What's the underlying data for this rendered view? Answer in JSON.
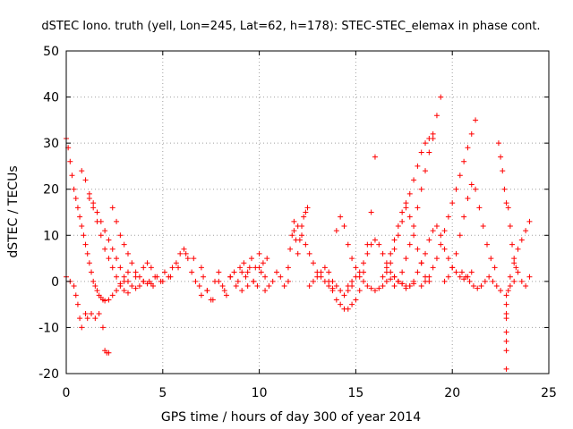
{
  "chart_data": {
    "type": "scatter",
    "title": "dSTEC Iono. truth (yell, Lon=245, Lat=62, h=178): STEC-STEC_elemax in phase cont.",
    "xlabel": "GPS time / hours of day 300 of year 2014",
    "ylabel": "dSTEC  / TECUs",
    "xlim": [
      0,
      25
    ],
    "ylim": [
      -20,
      50
    ],
    "x_ticks": [
      "0",
      "5",
      "10",
      "15",
      "20",
      "25"
    ],
    "y_ticks": [
      "-20",
      "-10",
      "0",
      "10",
      "20",
      "30",
      "40",
      "50"
    ],
    "grid": true,
    "marker": "plus",
    "color": "#ff0000",
    "series": [
      {
        "x": [
          0.0,
          0.1,
          0.2,
          0.3,
          0.4,
          0.5,
          0.6,
          0.7,
          0.8,
          0.9,
          1.0,
          1.1,
          1.2,
          1.3,
          1.4,
          1.5,
          1.6,
          1.7,
          1.8,
          1.9,
          2.0,
          2.2,
          2.4,
          2.6,
          2.8,
          3.0
        ],
        "y": [
          31,
          29,
          26,
          23,
          20,
          18,
          16,
          14,
          12,
          10,
          8,
          6,
          4,
          2,
          0,
          -1,
          -2,
          -3,
          -3.5,
          -4,
          -4.2,
          -4,
          -3,
          -2,
          -1,
          0
        ]
      },
      {
        "x": [
          0.0,
          0.2,
          0.4,
          0.5,
          0.6,
          0.7,
          0.8,
          1.0,
          1.1,
          1.3,
          1.5,
          1.7,
          1.9,
          2.0,
          2.1,
          2.2
        ],
        "y": [
          1,
          0,
          -1,
          -3,
          -5,
          -8,
          -10,
          -7,
          -8,
          -7,
          -8,
          -7,
          -10,
          -15,
          -15.5,
          -15.5
        ]
      },
      {
        "x": [
          0.8,
          1.0,
          1.2,
          1.4,
          1.6,
          1.8,
          2.0,
          2.2,
          2.4,
          2.6,
          2.8,
          3.0,
          3.2
        ],
        "y": [
          24,
          22,
          19,
          16,
          13,
          10,
          7,
          5,
          3,
          1,
          -0.5,
          -2,
          -2.5
        ]
      },
      {
        "x": [
          1.2,
          1.4,
          1.6,
          1.8,
          2.0,
          2.2,
          2.4,
          2.6,
          2.8,
          3.0,
          3.2,
          3.4,
          3.6,
          3.8,
          4.0
        ],
        "y": [
          18,
          17,
          15,
          13,
          11,
          9,
          7,
          5,
          3,
          1,
          0,
          -1,
          -1.5,
          -1,
          0
        ]
      },
      {
        "x": [
          2.4,
          2.6,
          2.8,
          3.0,
          3.2,
          3.4,
          3.6,
          3.8,
          4.0,
          4.2,
          4.4
        ],
        "y": [
          16,
          13,
          10,
          8,
          6,
          4,
          2,
          1,
          0,
          -0.5,
          -0.5
        ]
      },
      {
        "x": [
          3.2,
          3.6,
          4.0,
          4.2,
          4.4,
          4.6,
          5.0,
          5.4,
          5.8,
          6.2,
          6.6,
          7.0
        ],
        "y": [
          2,
          1,
          3,
          4,
          3,
          1,
          0,
          1,
          3,
          6,
          5,
          3
        ]
      },
      {
        "x": [
          4.3,
          4.5,
          4.7,
          4.9,
          5.1,
          5.3,
          5.5,
          5.7,
          5.9,
          6.1,
          6.3,
          6.5,
          6.7,
          6.9,
          7.1,
          7.3,
          7.5,
          7.7,
          7.9,
          8.1,
          8.3,
          8.5,
          8.7,
          8.9,
          9.1,
          9.3,
          9.5,
          9.7,
          9.9,
          10.1,
          10.3,
          10.5,
          10.7,
          10.9,
          11.1,
          11.3,
          11.5
        ],
        "y": [
          0,
          -1,
          1,
          0,
          2,
          1,
          3,
          4,
          6,
          7,
          5,
          2,
          0,
          -1,
          1,
          -2,
          -4,
          0,
          2,
          -1,
          -3,
          1,
          2,
          0,
          -2,
          1,
          3,
          0,
          -1,
          2,
          1,
          -1,
          0,
          2,
          1,
          -1,
          0
        ]
      },
      {
        "x": [
          7.0,
          7.3,
          7.6,
          7.9,
          8.2,
          8.5,
          8.8,
          9.1,
          9.4,
          9.7,
          10.0,
          10.3
        ],
        "y": [
          -3,
          -2,
          -4,
          0,
          -2,
          1,
          -1,
          2,
          -1,
          0,
          3,
          -2
        ]
      },
      {
        "x": [
          9.0,
          9.2,
          9.4,
          9.6,
          9.8,
          10.0,
          10.2,
          10.4
        ],
        "y": [
          3,
          4,
          2,
          5,
          3,
          6,
          4,
          5
        ]
      },
      {
        "x": [
          11.5,
          11.6,
          11.7,
          11.8,
          11.9,
          12.0,
          12.1,
          12.2,
          12.3,
          12.4,
          12.5
        ],
        "y": [
          3,
          7,
          10,
          11,
          9,
          6,
          9,
          12,
          14,
          15,
          16
        ]
      },
      {
        "x": [
          11.8,
          12.0,
          12.2,
          12.4,
          12.6,
          12.8,
          13.0,
          13.2,
          13.4,
          13.6,
          13.8
        ],
        "y": [
          13,
          12,
          10,
          8,
          6,
          4,
          2,
          1,
          0,
          -1,
          -1.5
        ]
      },
      {
        "x": [
          12.6,
          12.8,
          13.0,
          13.2,
          13.4,
          13.6,
          13.8,
          14.0,
          14.2,
          14.4,
          14.6,
          14.8
        ],
        "y": [
          -1,
          0,
          1,
          2,
          3,
          2,
          0,
          -1,
          -2,
          -3,
          -2,
          -1
        ]
      },
      {
        "x": [
          13.6,
          13.8,
          14.0,
          14.2,
          14.4,
          14.6,
          14.8,
          15.0,
          15.2,
          15.4,
          15.6,
          15.8,
          16.0
        ],
        "y": [
          0,
          -2,
          -4,
          -5,
          -6,
          -6,
          -5,
          -4,
          -2,
          2,
          8,
          15,
          27
        ]
      },
      {
        "x": [
          14.0,
          14.2,
          14.4,
          14.6,
          14.8,
          15.0,
          15.2,
          15.4,
          15.6,
          15.8,
          16.0,
          16.2,
          16.4,
          16.6,
          16.8,
          17.0,
          17.2,
          17.4
        ],
        "y": [
          11,
          14,
          12,
          8,
          5,
          3,
          1,
          0,
          -1,
          -1.5,
          -2,
          -1.5,
          -1,
          0,
          0.5,
          1,
          0,
          -0.5
        ]
      },
      {
        "x": [
          14.6,
          14.8,
          15.0,
          15.2,
          15.4,
          15.6,
          15.8,
          16.0,
          16.2,
          16.4,
          16.6,
          16.8,
          17.0,
          17.2,
          17.4,
          17.6,
          17.8,
          18.0
        ],
        "y": [
          -1,
          0,
          1,
          2,
          4,
          6,
          8,
          9,
          8,
          6,
          4,
          2,
          1,
          0,
          -0.5,
          -1,
          -1,
          -0.5
        ]
      },
      {
        "x": [
          16.4,
          16.6,
          16.8,
          17.0,
          17.2,
          17.4,
          17.6,
          17.8,
          18.0,
          18.2,
          18.4,
          18.6,
          18.8
        ],
        "y": [
          1,
          3,
          6,
          9,
          12,
          15,
          17,
          14,
          10,
          7,
          4,
          1,
          0
        ]
      },
      {
        "x": [
          16.6,
          16.8,
          17.0,
          17.2,
          17.4,
          17.6,
          17.8,
          18.0,
          18.2,
          18.4,
          18.6,
          18.8,
          19.0
        ],
        "y": [
          2,
          4,
          7,
          10,
          13,
          16,
          19,
          22,
          25,
          28,
          30,
          31,
          31
        ]
      },
      {
        "x": [
          17.0,
          17.2,
          17.4,
          17.6,
          17.8,
          18.0,
          18.2,
          18.4,
          18.6,
          18.8,
          19.0,
          19.2,
          19.4
        ],
        "y": [
          -1,
          0,
          2,
          5,
          8,
          12,
          16,
          20,
          24,
          28,
          32,
          36,
          40
        ]
      },
      {
        "x": [
          17.6,
          17.8,
          18.0,
          18.2,
          18.4,
          18.6,
          18.8,
          19.0,
          19.2,
          19.4,
          19.6,
          19.8,
          20.0,
          20.2,
          20.4,
          20.6,
          20.8,
          21.0
        ],
        "y": [
          -1.5,
          -1,
          0,
          2,
          4,
          6,
          9,
          11,
          12,
          10,
          7,
          5,
          3,
          2,
          1,
          0.5,
          1,
          2
        ]
      },
      {
        "x": [
          18.4,
          18.6,
          18.8,
          19.0,
          19.2,
          19.4,
          19.6,
          19.8,
          20.0,
          20.2,
          20.4,
          20.6,
          20.8,
          21.0,
          21.2
        ],
        "y": [
          -1,
          0,
          1,
          3,
          5,
          8,
          11,
          14,
          17,
          20,
          23,
          26,
          29,
          32,
          35
        ]
      },
      {
        "x": [
          19.6,
          19.8,
          20.0,
          20.2,
          20.4,
          20.6,
          20.8,
          21.0,
          21.2,
          21.4,
          21.6,
          21.8,
          22.0,
          22.2
        ],
        "y": [
          0,
          1,
          3,
          6,
          10,
          14,
          18,
          21,
          20,
          16,
          12,
          8,
          5,
          3
        ]
      },
      {
        "x": [
          20.5,
          20.7,
          20.9,
          21.1,
          21.3,
          21.5,
          21.7,
          21.9,
          22.1,
          22.3,
          22.5
        ],
        "y": [
          2,
          1,
          0,
          -1,
          -1.5,
          -1,
          0,
          1,
          0,
          -1,
          -2
        ]
      },
      {
        "x": [
          22.4,
          22.5,
          22.6,
          22.7,
          22.8,
          22.9,
          23.0,
          23.1,
          23.2,
          23.3,
          23.4
        ],
        "y": [
          30,
          27,
          24,
          20,
          17,
          16,
          12,
          8,
          5,
          3,
          2
        ]
      },
      {
        "x": [
          22.9,
          23.0,
          23.2,
          23.4,
          23.6,
          23.8,
          24.0
        ],
        "y": [
          -2,
          1,
          4,
          7,
          9,
          11,
          13
        ]
      },
      {
        "x": [
          22.8,
          22.8,
          22.8,
          22.8,
          22.8,
          22.8,
          22.8,
          22.8
        ],
        "y": [
          -3,
          -5,
          -7,
          -8,
          -11,
          -13,
          -15,
          -19
        ]
      },
      {
        "x": [
          23.0,
          23.2,
          23.4,
          23.6,
          23.8,
          24.0
        ],
        "y": [
          -1,
          0,
          2,
          0,
          -1,
          1
        ]
      }
    ]
  }
}
